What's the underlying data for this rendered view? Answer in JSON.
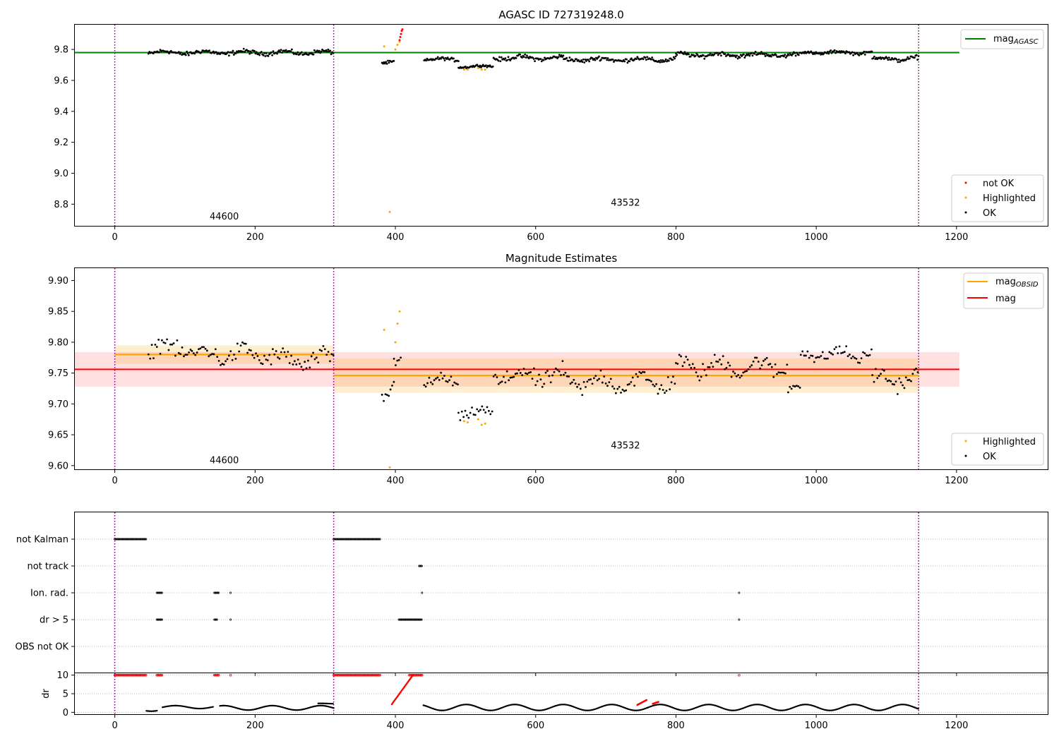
{
  "chart_data": [
    {
      "type": "scatter",
      "title": "AGASC ID 727319248.0",
      "xlim": [
        -57,
        1330
      ],
      "ylim": [
        8.66,
        9.96
      ],
      "xticks": [
        "0",
        "200",
        "400",
        "600",
        "800",
        "1000",
        "1200"
      ],
      "xtick_values": [
        0,
        200,
        400,
        600,
        800,
        1000,
        1200
      ],
      "yticks": [
        "8.8",
        "9.0",
        "9.2",
        "9.4",
        "9.6",
        "9.8"
      ],
      "ytick_values": [
        8.8,
        9.0,
        9.2,
        9.4,
        9.6,
        9.8
      ],
      "obsid_boundaries": [
        0,
        312,
        1146
      ],
      "obsid_labels": [
        {
          "text": "44600",
          "x": 156,
          "y": 8.7
        },
        {
          "text": "43532",
          "x": 728,
          "y": 8.79
        }
      ],
      "reference_line": {
        "name": "mag_AGASC",
        "label_main": "mag",
        "label_sub": "AGASC",
        "value": 9.78,
        "x_range": [
          -57,
          1204
        ],
        "color": "#008000"
      },
      "legend_lines": {
        "entries": [
          "mag_AGASC"
        ],
        "position": "top-right"
      },
      "legend_points": {
        "entries": [
          "not OK",
          "Highlighted",
          "OK"
        ],
        "position": "bottom-right"
      },
      "series": [
        {
          "name": "OK",
          "color": "#000000",
          "segments": [
            {
              "x": [
                48,
                312
              ],
              "center": 9.78,
              "spread": 0.02
            },
            {
              "x": [
                381,
                398
              ],
              "center": 9.72,
              "spread": 0.015
            },
            {
              "x": [
                441,
                490
              ],
              "center": 9.735,
              "spread": 0.015
            },
            {
              "x": [
                490,
                540
              ],
              "center": 9.69,
              "spread": 0.012
            },
            {
              "x": [
                540,
                640
              ],
              "center": 9.745,
              "spread": 0.02
            },
            {
              "x": [
                640,
                800
              ],
              "center": 9.735,
              "spread": 0.02
            },
            {
              "x": [
                800,
                980
              ],
              "center": 9.765,
              "spread": 0.02
            },
            {
              "x": [
                980,
                1080
              ],
              "center": 9.78,
              "spread": 0.015
            },
            {
              "x": [
                1080,
                1146
              ],
              "center": 9.74,
              "spread": 0.02
            }
          ]
        },
        {
          "name": "Highlighted",
          "color": "#ffa500",
          "points": [
            [
              384,
              9.82
            ],
            [
              392,
              8.75
            ],
            [
              400,
              9.8
            ],
            [
              403,
              9.83
            ],
            [
              406,
              9.85
            ],
            [
              498,
              9.67
            ],
            [
              503,
              9.67
            ],
            [
              518,
              9.68
            ],
            [
              523,
              9.67
            ],
            [
              528,
              9.67
            ]
          ]
        },
        {
          "name": "not OK",
          "color": "#ff0000",
          "points": [
            [
              406,
              9.86
            ],
            [
              407,
              9.88
            ],
            [
              408,
              9.9
            ],
            [
              409,
              9.92
            ],
            [
              410,
              9.93
            ]
          ]
        }
      ]
    },
    {
      "type": "scatter",
      "title": "Magnitude Estimates",
      "xlim": [
        -57,
        1330
      ],
      "ylim": [
        9.594,
        9.92
      ],
      "xticks": [
        "0",
        "200",
        "400",
        "600",
        "800",
        "1000",
        "1200"
      ],
      "xtick_values": [
        0,
        200,
        400,
        600,
        800,
        1000,
        1200
      ],
      "yticks": [
        "9.60",
        "9.65",
        "9.70",
        "9.75",
        "9.80",
        "9.85",
        "9.90"
      ],
      "ytick_values": [
        9.6,
        9.65,
        9.7,
        9.75,
        9.8,
        9.85,
        9.9
      ],
      "obsid_boundaries": [
        0,
        312,
        1146
      ],
      "obsid_labels": [
        {
          "text": "44600",
          "x": 156,
          "y": 9.604
        },
        {
          "text": "43532",
          "x": 728,
          "y": 9.628
        }
      ],
      "mag_line": {
        "name": "mag",
        "value": 9.756,
        "band": [
          9.728,
          9.784
        ],
        "x_range": [
          -57,
          1204
        ],
        "color": "#ff0000"
      },
      "obsid_lines": {
        "name": "mag_OBSID",
        "label_main": "mag",
        "label_sub": "OBSID",
        "color": "#ffa500",
        "segments": [
          {
            "x": [
              0,
              312
            ],
            "value": 9.78,
            "band": [
              9.765,
              9.795
            ]
          },
          {
            "x": [
              312,
              1146
            ],
            "value": 9.746,
            "band": [
              9.718,
              9.774
            ]
          }
        ]
      },
      "legend_lines": {
        "entries": [
          "mag_OBSID",
          "mag"
        ],
        "position": "top-right"
      },
      "legend_points": {
        "entries": [
          "Highlighted",
          "OK"
        ],
        "position": "bottom-right"
      },
      "series": [
        {
          "name": "OK",
          "color": "#000000",
          "segments": [
            {
              "x": [
                48,
                110
              ],
              "center": 9.79,
              "spread": 0.02
            },
            {
              "x": [
                110,
                230
              ],
              "center": 9.78,
              "spread": 0.02
            },
            {
              "x": [
                230,
                312
              ],
              "center": 9.77,
              "spread": 0.02
            },
            {
              "x": [
                381,
                398
              ],
              "center": 9.725,
              "spread": 0.025
            },
            {
              "x": [
                398,
                408
              ],
              "center": 9.77,
              "spread": 0.03
            },
            {
              "x": [
                441,
                490
              ],
              "center": 9.735,
              "spread": 0.015
            },
            {
              "x": [
                490,
                540
              ],
              "center": 9.685,
              "spread": 0.012
            },
            {
              "x": [
                540,
                640
              ],
              "center": 9.745,
              "spread": 0.02
            },
            {
              "x": [
                640,
                800
              ],
              "center": 9.735,
              "spread": 0.02
            },
            {
              "x": [
                800,
                960
              ],
              "center": 9.76,
              "spread": 0.02
            },
            {
              "x": [
                960,
                978
              ],
              "center": 9.725,
              "spread": 0.01
            },
            {
              "x": [
                978,
                1080
              ],
              "center": 9.78,
              "spread": 0.015
            },
            {
              "x": [
                1080,
                1146
              ],
              "center": 9.74,
              "spread": 0.018
            }
          ]
        },
        {
          "name": "Highlighted",
          "color": "#ffa500",
          "points": [
            [
              384,
              9.82
            ],
            [
              392,
              9.597
            ],
            [
              400,
              9.8
            ],
            [
              403,
              9.83
            ],
            [
              406,
              9.85
            ],
            [
              498,
              9.672
            ],
            [
              503,
              9.67
            ],
            [
              518,
              9.675
            ],
            [
              523,
              9.666
            ],
            [
              528,
              9.668
            ]
          ]
        }
      ]
    },
    {
      "type": "scatter",
      "title": "",
      "xlim": [
        -57,
        1330
      ],
      "categories": [
        "not Kalman",
        "not track",
        "Ion. rad.",
        "dr > 5",
        "OBS not OK"
      ],
      "xticks": [
        "0",
        "200",
        "400",
        "600",
        "800",
        "1000",
        "1200"
      ],
      "xtick_values": [
        0,
        200,
        400,
        600,
        800,
        1000,
        1200
      ],
      "obsid_boundaries": [
        0,
        312,
        1146
      ],
      "flags": {
        "not Kalman": [
          [
            0,
            45
          ],
          [
            312,
            378
          ]
        ],
        "not track": [
          [
            434,
            438
          ]
        ],
        "Ion. rad.": [
          [
            60,
            68
          ],
          [
            142,
            148
          ],
          [
            165,
            165
          ],
          [
            438,
            438
          ],
          [
            890,
            890
          ]
        ],
        "dr > 5": [
          [
            60,
            68
          ],
          [
            142,
            146
          ],
          [
            165,
            165
          ],
          [
            405,
            438
          ],
          [
            890,
            890
          ]
        ],
        "OBS not OK": []
      }
    },
    {
      "type": "scatter",
      "title": "",
      "ylabel": "dr",
      "xlim": [
        -57,
        1330
      ],
      "ylim": [
        -0.5,
        10.5
      ],
      "yticks": [
        "0",
        "5",
        "10"
      ],
      "ytick_values": [
        0,
        5,
        10
      ],
      "xticks": [
        "0",
        "200",
        "400",
        "600",
        "800",
        "1000",
        "1200"
      ],
      "xtick_values": [
        0,
        200,
        400,
        600,
        800,
        1000,
        1200
      ],
      "obsid_boundaries": [
        0,
        312,
        1146
      ],
      "series": [
        {
          "name": "dr",
          "color": "#000000",
          "segments": [
            {
              "x": [
                45,
                60
              ],
              "center": 0.8,
              "spread": 0.5
            },
            {
              "x": [
                68,
                140
              ],
              "center": 1.4,
              "spread": 0.4
            },
            {
              "x": [
                150,
                312
              ],
              "center": 1.2,
              "spread": 0.6
            },
            {
              "x": [
                290,
                312
              ],
              "center": 2.3,
              "spread": 0.1
            },
            {
              "x": [
                440,
                760
              ],
              "center": 1.3,
              "spread": 0.8
            },
            {
              "x": [
                760,
                1146
              ],
              "center": 1.3,
              "spread": 0.8
            }
          ]
        },
        {
          "name": "dr > 5",
          "color": "#ff0000",
          "points_ranges": [
            {
              "x": [
                0,
                45
              ],
              "y": 10
            },
            {
              "x": [
                60,
                68
              ],
              "y": 10
            },
            {
              "x": [
                142,
                148
              ],
              "y": 10
            },
            {
              "x": [
                165,
                165
              ],
              "y": 10
            },
            {
              "x": [
                312,
                378
              ],
              "y": 10
            },
            {
              "x": [
                420,
                438
              ],
              "y": 10
            },
            {
              "x": [
                890,
                890
              ],
              "y": 10
            }
          ],
          "ramps": [
            {
              "x": [
                395,
                425
              ],
              "y": [
                2.2,
                10
              ]
            },
            {
              "x": [
                745,
                758
              ],
              "y": [
                2.0,
                3.3
              ]
            },
            {
              "x": [
                767,
                775
              ],
              "y": [
                2.3,
                2.8
              ]
            }
          ]
        }
      ]
    }
  ]
}
